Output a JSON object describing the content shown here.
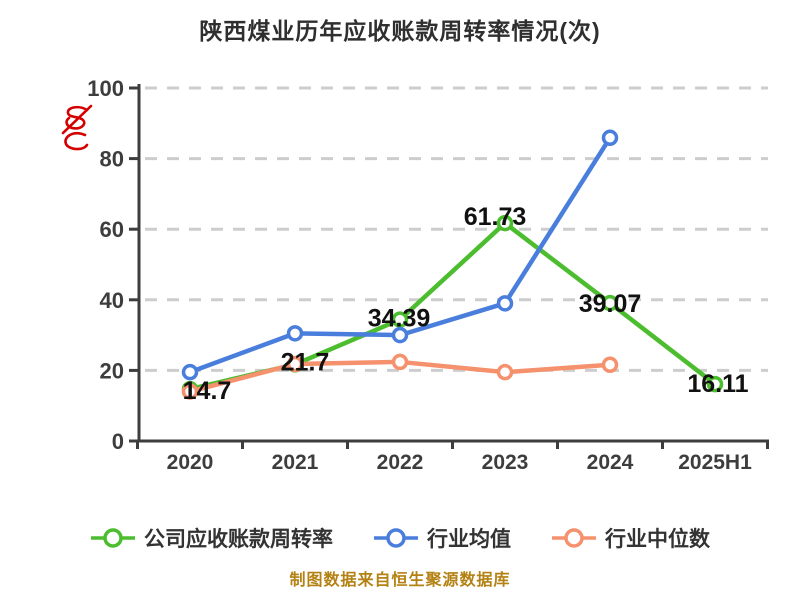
{
  "chart_data": {
    "type": "line",
    "title": "陕西煤业历年应收账款周转率情况(次)",
    "categories": [
      "2020",
      "2021",
      "2022",
      "2023",
      "2024",
      "2025H1"
    ],
    "series": [
      {
        "name": "公司应收账款周转率",
        "color": "#4bbd2e",
        "values": [
          14.7,
          21.7,
          34.39,
          61.73,
          39.07,
          16.11
        ],
        "labels": [
          "14.7",
          "21.7",
          "34.39",
          "61.73",
          "39.07",
          "16.11"
        ]
      },
      {
        "name": "行业均值",
        "color": "#4a7edc",
        "values": [
          19.5,
          30.5,
          30.0,
          39.0,
          85.9,
          null
        ],
        "labels": []
      },
      {
        "name": "行业中位数",
        "color": "#f5916d",
        "values": [
          14.0,
          21.8,
          22.4,
          19.5,
          21.6,
          null
        ],
        "labels": []
      }
    ],
    "ylim": [
      0,
      100
    ],
    "yticks": [
      0,
      20,
      40,
      60,
      80,
      100
    ],
    "grid": "horizontal dashed",
    "legend_position": "bottom",
    "marker": "open-circle",
    "axis_color": "#3d3d3d",
    "grid_color": "#cdcdcd",
    "label_color": "#111111",
    "watermark_color": "#d40000",
    "source_note": "制图数据来自恒生聚源数据库"
  }
}
